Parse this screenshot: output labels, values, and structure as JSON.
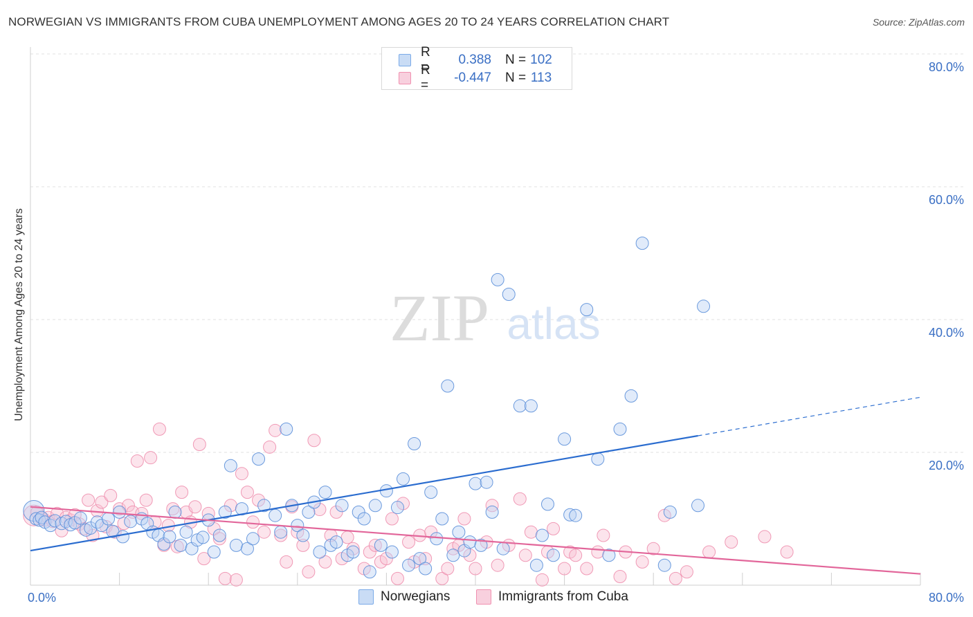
{
  "title": "NORWEGIAN VS IMMIGRANTS FROM CUBA UNEMPLOYMENT AMONG AGES 20 TO 24 YEARS CORRELATION CHART",
  "source": "Source: ZipAtlas.com",
  "watermark": {
    "zip": "ZIP",
    "atlas": "atlas"
  },
  "legend": {
    "rows": [
      {
        "r_label": "R =",
        "r_value": "0.388",
        "n_label": "N =",
        "n_value": "102",
        "color": "#7aaae8",
        "fill": "#c9dcf5"
      },
      {
        "r_label": "R =",
        "r_value": "-0.447",
        "n_label": "N =",
        "n_value": "113",
        "color": "#f090b0",
        "fill": "#f8d0de"
      }
    ]
  },
  "chart_data": {
    "type": "scatter",
    "title": "NORWEGIAN VS IMMIGRANTS FROM CUBA UNEMPLOYMENT AMONG AGES 20 TO 24 YEARS CORRELATION CHART",
    "xlabel": "",
    "ylabel": "Unemployment Among Ages 20 to 24 years",
    "xlim": [
      0,
      80
    ],
    "ylim": [
      0,
      80
    ],
    "x_tick_labels": [
      "0.0%",
      "80.0%"
    ],
    "y_tick_labels": [
      "20.0%",
      "40.0%",
      "60.0%",
      "80.0%"
    ],
    "y_ticks": [
      20,
      40,
      60,
      80
    ],
    "grid": true,
    "legend_position": "bottom",
    "colors": {
      "norwegians": "#5b8fd9",
      "cuba": "#ee8fae",
      "norwegians_line": "#2a6ccf",
      "cuba_line": "#e2669a"
    },
    "series": [
      {
        "name": "Norwegians",
        "trend": {
          "x": [
            0,
            60,
            80
          ],
          "y": [
            5.2,
            22.5,
            28.3
          ],
          "solid_until": 60
        },
        "points": [
          [
            0.3,
            11.2
          ],
          [
            0.5,
            10
          ],
          [
            0.8,
            9.8
          ],
          [
            1,
            10.2
          ],
          [
            1.3,
            9.5
          ],
          [
            1.8,
            9
          ],
          [
            2.2,
            9.7
          ],
          [
            2.8,
            9.3
          ],
          [
            3.2,
            9.6
          ],
          [
            3.6,
            9.1
          ],
          [
            4,
            9.4
          ],
          [
            4.5,
            10.1
          ],
          [
            5,
            8.3
          ],
          [
            5.4,
            8.6
          ],
          [
            6,
            9.5
          ],
          [
            6.4,
            9
          ],
          [
            7,
            10
          ],
          [
            7.4,
            8.1
          ],
          [
            8,
            11
          ],
          [
            8.3,
            7.3
          ],
          [
            9,
            9.6
          ],
          [
            10,
            10
          ],
          [
            10.5,
            9.3
          ],
          [
            11,
            8
          ],
          [
            11.5,
            7.5
          ],
          [
            12,
            6.2
          ],
          [
            12.5,
            7.3
          ],
          [
            13,
            11
          ],
          [
            13.5,
            6
          ],
          [
            14,
            8
          ],
          [
            14.5,
            5.5
          ],
          [
            15,
            6.8
          ],
          [
            15.5,
            7.2
          ],
          [
            16,
            9.8
          ],
          [
            16.5,
            5
          ],
          [
            17,
            7.5
          ],
          [
            17.5,
            11
          ],
          [
            18,
            18
          ],
          [
            18.5,
            6
          ],
          [
            19,
            11.5
          ],
          [
            19.5,
            5.5
          ],
          [
            20,
            7
          ],
          [
            20.5,
            19
          ],
          [
            21,
            12
          ],
          [
            22,
            10.5
          ],
          [
            22.5,
            8
          ],
          [
            23,
            23.5
          ],
          [
            23.5,
            12
          ],
          [
            24,
            9
          ],
          [
            24.5,
            7.5
          ],
          [
            25,
            11
          ],
          [
            25.5,
            12.5
          ],
          [
            26,
            5
          ],
          [
            26.5,
            14
          ],
          [
            27,
            6
          ],
          [
            27.5,
            6.5
          ],
          [
            28,
            12
          ],
          [
            28.5,
            4.5
          ],
          [
            29,
            5
          ],
          [
            29.5,
            11
          ],
          [
            30,
            10
          ],
          [
            30.5,
            2
          ],
          [
            31,
            12
          ],
          [
            31.5,
            6
          ],
          [
            32,
            14.2
          ],
          [
            32.5,
            5
          ],
          [
            33,
            11.7
          ],
          [
            33.5,
            16
          ],
          [
            34,
            3
          ],
          [
            34.5,
            21.3
          ],
          [
            35,
            4
          ],
          [
            35.5,
            2.5
          ],
          [
            36,
            14
          ],
          [
            36.5,
            7
          ],
          [
            37,
            10
          ],
          [
            37.5,
            30
          ],
          [
            38,
            4.5
          ],
          [
            38.5,
            8
          ],
          [
            39,
            5.2
          ],
          [
            39.5,
            6.5
          ],
          [
            40,
            15.3
          ],
          [
            40.5,
            6
          ],
          [
            41,
            15.5
          ],
          [
            41.5,
            11
          ],
          [
            42,
            46
          ],
          [
            42.5,
            5.5
          ],
          [
            43,
            43.8
          ],
          [
            44,
            27
          ],
          [
            45,
            27
          ],
          [
            45.5,
            3
          ],
          [
            46,
            7.5
          ],
          [
            46.5,
            12.2
          ],
          [
            47,
            4.5
          ],
          [
            48,
            22
          ],
          [
            48.5,
            10.6
          ],
          [
            49,
            10.5
          ],
          [
            50,
            41.5
          ],
          [
            51,
            19
          ],
          [
            52,
            4.5
          ],
          [
            53,
            23.5
          ],
          [
            54,
            28.5
          ],
          [
            55,
            51.5
          ],
          [
            57,
            3
          ],
          [
            57.5,
            11
          ],
          [
            60,
            12
          ],
          [
            60.5,
            42
          ]
        ]
      },
      {
        "name": "Immigrants from Cuba",
        "trend": {
          "x": [
            0,
            80
          ],
          "y": [
            11.8,
            1.7
          ]
        },
        "points": [
          [
            0.3,
            10.5
          ],
          [
            0.6,
            11
          ],
          [
            1,
            10
          ],
          [
            1.3,
            9.8
          ],
          [
            1.6,
            10.2
          ],
          [
            2,
            9.6
          ],
          [
            2.4,
            10.8
          ],
          [
            2.8,
            8.2
          ],
          [
            3.2,
            10.2
          ],
          [
            3.6,
            9.8
          ],
          [
            4,
            10.6
          ],
          [
            4.4,
            9.2
          ],
          [
            4.8,
            8.5
          ],
          [
            5.2,
            12.8
          ],
          [
            5.6,
            7.5
          ],
          [
            6,
            11.2
          ],
          [
            6.4,
            12.5
          ],
          [
            6.8,
            8.8
          ],
          [
            7.2,
            13.5
          ],
          [
            7.6,
            8
          ],
          [
            8,
            11.5
          ],
          [
            8.4,
            9.3
          ],
          [
            8.8,
            12
          ],
          [
            9.2,
            11
          ],
          [
            9.6,
            18.7
          ],
          [
            10,
            10.8
          ],
          [
            10.4,
            12.8
          ],
          [
            10.8,
            19.2
          ],
          [
            11.2,
            9.5
          ],
          [
            11.6,
            23.5
          ],
          [
            12,
            6
          ],
          [
            12.4,
            9
          ],
          [
            12.8,
            11.5
          ],
          [
            13.2,
            5.8
          ],
          [
            13.6,
            14
          ],
          [
            14,
            11
          ],
          [
            14.4,
            9.5
          ],
          [
            14.8,
            11.8
          ],
          [
            15.2,
            21.2
          ],
          [
            15.6,
            4
          ],
          [
            16,
            10.8
          ],
          [
            16.5,
            8.5
          ],
          [
            17,
            7
          ],
          [
            17.5,
            1
          ],
          [
            18,
            12
          ],
          [
            18.5,
            0.8
          ],
          [
            19,
            16.8
          ],
          [
            19.5,
            14
          ],
          [
            20,
            9.5
          ],
          [
            20.5,
            12.8
          ],
          [
            21,
            8
          ],
          [
            21.5,
            20.8
          ],
          [
            22,
            23.3
          ],
          [
            22.5,
            7.5
          ],
          [
            23,
            3.5
          ],
          [
            23.5,
            11.8
          ],
          [
            24,
            8
          ],
          [
            24.5,
            6
          ],
          [
            25,
            2
          ],
          [
            25.5,
            21.8
          ],
          [
            26,
            11.4
          ],
          [
            26.5,
            3.5
          ],
          [
            27,
            7.5
          ],
          [
            27.5,
            11
          ],
          [
            28,
            4
          ],
          [
            28.5,
            7.2
          ],
          [
            29,
            5.5
          ],
          [
            30,
            2.5
          ],
          [
            30.5,
            5
          ],
          [
            31,
            6
          ],
          [
            31.5,
            3.5
          ],
          [
            32,
            4
          ],
          [
            32.5,
            10
          ],
          [
            33,
            1
          ],
          [
            33.5,
            12.3
          ],
          [
            34,
            6.5
          ],
          [
            34.5,
            3.5
          ],
          [
            35,
            7.5
          ],
          [
            35.5,
            4
          ],
          [
            36,
            8
          ],
          [
            37,
            1
          ],
          [
            37.5,
            2.5
          ],
          [
            38,
            5.5
          ],
          [
            38.5,
            6
          ],
          [
            39,
            10
          ],
          [
            39.5,
            4.5
          ],
          [
            40,
            2.5
          ],
          [
            41,
            6.5
          ],
          [
            41.5,
            12
          ],
          [
            42,
            3
          ],
          [
            43,
            6
          ],
          [
            44,
            13
          ],
          [
            44.5,
            4.5
          ],
          [
            45,
            8
          ],
          [
            46,
            0.8
          ],
          [
            46.5,
            5
          ],
          [
            47,
            8.5
          ],
          [
            48,
            2.5
          ],
          [
            48.5,
            5
          ],
          [
            49,
            4.5
          ],
          [
            50,
            2.5
          ],
          [
            51,
            5
          ],
          [
            51.5,
            7.5
          ],
          [
            53,
            1.3
          ],
          [
            53.5,
            5
          ],
          [
            55,
            3.5
          ],
          [
            56,
            5.5
          ],
          [
            57,
            10.5
          ],
          [
            58,
            1
          ],
          [
            59,
            2
          ],
          [
            61,
            5
          ],
          [
            63,
            6.5
          ],
          [
            66,
            7.3
          ],
          [
            68,
            5
          ]
        ]
      }
    ]
  }
}
